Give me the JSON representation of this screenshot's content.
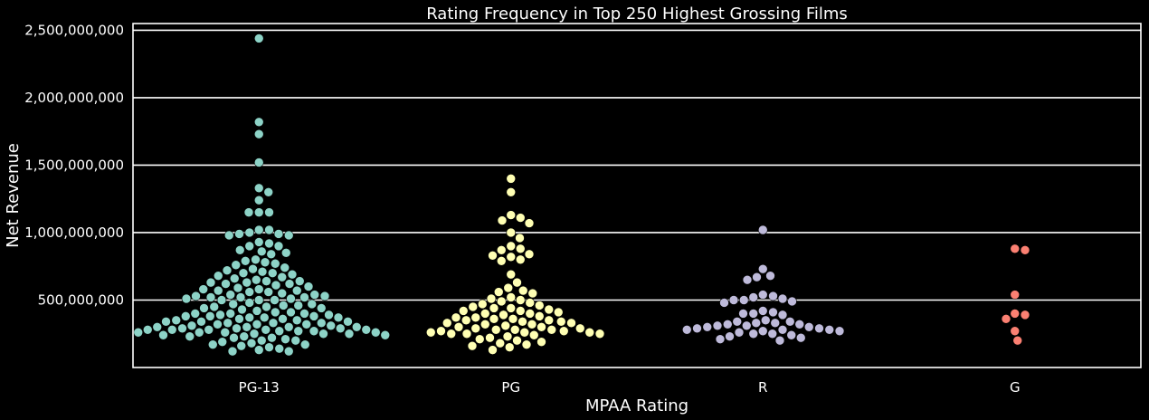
{
  "chart_data": {
    "type": "scatter",
    "subtype": "swarm",
    "title": "Rating Frequency in Top 250 Highest Grossing Films",
    "xlabel": "MPAA Rating",
    "ylabel": "Net Revenue",
    "categories": [
      "PG-13",
      "PG",
      "R",
      "G"
    ],
    "colors": [
      "#8dd3c7",
      "#ffffb3",
      "#bebada",
      "#fb8072"
    ],
    "background": "#000000",
    "grid": true,
    "ylim": [
      0,
      2550000000
    ],
    "yticks": [
      500000000,
      1000000000,
      1500000000,
      2000000000,
      2500000000
    ],
    "ytick_labels": [
      "500,000,000",
      "1,000,000,000",
      "1,500,000,000",
      "2,000,000,000",
      "2,500,000,000"
    ],
    "series": [
      {
        "values": [
          2440000000,
          1820000000,
          1730000000,
          1520000000,
          1330000000,
          1300000000,
          1240000000,
          1150000000,
          1150000000,
          1150000000,
          1020000000,
          1020000000,
          1000000000,
          990000000,
          990000000,
          980000000,
          980000000,
          930000000,
          920000000,
          900000000,
          900000000,
          870000000,
          860000000,
          850000000,
          840000000,
          800000000,
          790000000,
          780000000,
          770000000,
          760000000,
          740000000,
          730000000,
          720000000,
          710000000,
          700000000,
          700000000,
          690000000,
          680000000,
          670000000,
          660000000,
          650000000,
          640000000,
          640000000,
          630000000,
          630000000,
          620000000,
          620000000,
          610000000,
          600000000,
          590000000,
          580000000,
          580000000,
          570000000,
          570000000,
          560000000,
          560000000,
          550000000,
          540000000,
          540000000,
          530000000,
          530000000,
          520000000,
          520000000,
          520000000,
          510000000,
          510000000,
          500000000,
          500000000,
          500000000,
          480000000,
          470000000,
          470000000,
          460000000,
          460000000,
          450000000,
          450000000,
          440000000,
          440000000,
          430000000,
          420000000,
          410000000,
          410000000,
          400000000,
          400000000,
          400000000,
          390000000,
          390000000,
          380000000,
          380000000,
          380000000,
          370000000,
          370000000,
          370000000,
          360000000,
          360000000,
          350000000,
          350000000,
          340000000,
          340000000,
          340000000,
          330000000,
          330000000,
          330000000,
          320000000,
          320000000,
          320000000,
          310000000,
          310000000,
          300000000,
          300000000,
          300000000,
          300000000,
          290000000,
          290000000,
          290000000,
          280000000,
          280000000,
          280000000,
          280000000,
          280000000,
          270000000,
          270000000,
          270000000,
          260000000,
          260000000,
          260000000,
          260000000,
          250000000,
          250000000,
          250000000,
          240000000,
          240000000,
          230000000,
          230000000,
          220000000,
          220000000,
          210000000,
          200000000,
          200000000,
          190000000,
          180000000,
          170000000,
          170000000,
          160000000,
          150000000,
          140000000,
          130000000,
          120000000,
          120000000
        ]
      },
      {
        "values": [
          1400000000,
          1300000000,
          1130000000,
          1110000000,
          1090000000,
          1070000000,
          1000000000,
          960000000,
          900000000,
          880000000,
          870000000,
          840000000,
          830000000,
          820000000,
          800000000,
          790000000,
          690000000,
          630000000,
          590000000,
          570000000,
          560000000,
          550000000,
          520000000,
          510000000,
          500000000,
          490000000,
          480000000,
          470000000,
          460000000,
          450000000,
          440000000,
          440000000,
          430000000,
          420000000,
          420000000,
          410000000,
          400000000,
          400000000,
          390000000,
          380000000,
          370000000,
          370000000,
          360000000,
          360000000,
          350000000,
          350000000,
          340000000,
          340000000,
          330000000,
          330000000,
          320000000,
          320000000,
          310000000,
          300000000,
          300000000,
          290000000,
          290000000,
          280000000,
          280000000,
          280000000,
          270000000,
          270000000,
          260000000,
          260000000,
          260000000,
          250000000,
          250000000,
          250000000,
          240000000,
          230000000,
          220000000,
          210000000,
          200000000,
          190000000,
          180000000,
          170000000,
          160000000,
          150000000,
          130000000
        ]
      },
      {
        "values": [
          1020000000,
          730000000,
          680000000,
          670000000,
          650000000,
          540000000,
          530000000,
          520000000,
          510000000,
          500000000,
          500000000,
          490000000,
          480000000,
          420000000,
          410000000,
          400000000,
          400000000,
          390000000,
          350000000,
          340000000,
          340000000,
          330000000,
          330000000,
          320000000,
          320000000,
          310000000,
          310000000,
          300000000,
          300000000,
          290000000,
          290000000,
          280000000,
          280000000,
          280000000,
          270000000,
          270000000,
          260000000,
          250000000,
          250000000,
          240000000,
          230000000,
          220000000,
          210000000,
          200000000
        ]
      },
      {
        "values": [
          880000000,
          870000000,
          540000000,
          400000000,
          390000000,
          360000000,
          270000000,
          200000000
        ]
      }
    ]
  }
}
